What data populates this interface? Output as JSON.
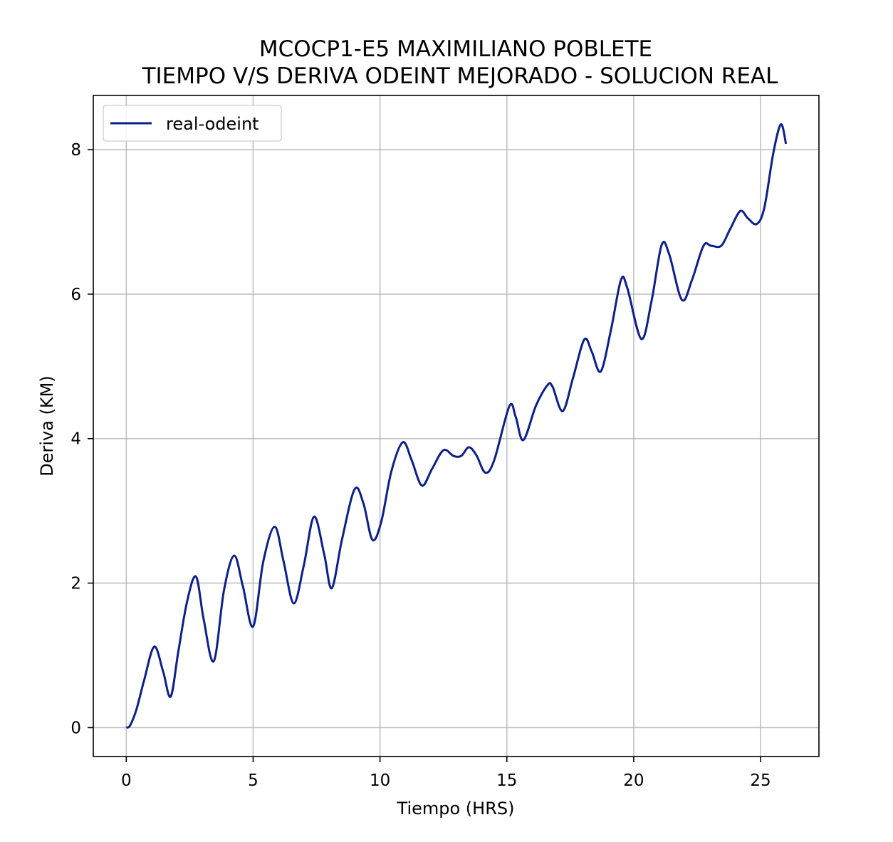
{
  "chart_data": {
    "type": "line",
    "title": [
      "MCOCP1-E5 MAXIMILIANO POBLETE",
      "TIEMPO V/S DERIVA ODEINT MEJORADO - SOLUCION REAL"
    ],
    "xlabel": "Tiempo (HRS)",
    "ylabel": "Deriva (KM)",
    "xlim": [
      -1.3,
      27.3
    ],
    "ylim": [
      -0.4,
      8.75
    ],
    "xticks": [
      0,
      5,
      10,
      15,
      20,
      25
    ],
    "yticks": [
      0,
      2,
      4,
      6,
      8
    ],
    "grid": true,
    "legend_position": "top-left",
    "series": [
      {
        "name": "real-odeint",
        "color": "#0b1f8c",
        "x": [
          0,
          0.15,
          0.4,
          0.7,
          1.1,
          1.45,
          1.75,
          2.05,
          2.4,
          2.75,
          3.05,
          3.45,
          3.85,
          4.25,
          4.6,
          5.0,
          5.4,
          5.85,
          6.2,
          6.6,
          7.0,
          7.4,
          7.8,
          8.1,
          8.5,
          9.0,
          9.35,
          9.7,
          10.05,
          10.45,
          10.9,
          11.25,
          11.65,
          12.05,
          12.5,
          12.9,
          13.2,
          13.5,
          13.8,
          14.15,
          14.5,
          15.1,
          15.35,
          15.65,
          16.15,
          16.6,
          16.8,
          17.2,
          17.6,
          18.05,
          18.35,
          18.7,
          19.1,
          19.5,
          19.75,
          20.3,
          20.7,
          21.1,
          21.4,
          21.9,
          22.3,
          22.75,
          23.05,
          23.45,
          23.8,
          24.2,
          24.5,
          24.85,
          25.15,
          25.5,
          25.8,
          26.0
        ],
        "y": [
          0,
          0.03,
          0.25,
          0.65,
          1.12,
          0.78,
          0.43,
          1.05,
          1.75,
          2.09,
          1.5,
          0.92,
          1.9,
          2.38,
          1.95,
          1.4,
          2.3,
          2.78,
          2.3,
          1.72,
          2.25,
          2.92,
          2.4,
          1.93,
          2.6,
          3.3,
          3.1,
          2.6,
          2.85,
          3.55,
          3.95,
          3.7,
          3.35,
          3.58,
          3.84,
          3.76,
          3.76,
          3.88,
          3.77,
          3.53,
          3.7,
          4.45,
          4.3,
          3.98,
          4.46,
          4.74,
          4.72,
          4.38,
          4.83,
          5.37,
          5.2,
          4.93,
          5.5,
          6.2,
          6.08,
          5.38,
          5.9,
          6.68,
          6.55,
          5.92,
          6.2,
          6.67,
          6.67,
          6.67,
          6.9,
          7.15,
          7.05,
          6.97,
          7.2,
          7.95,
          8.35,
          8.08
        ]
      }
    ]
  }
}
